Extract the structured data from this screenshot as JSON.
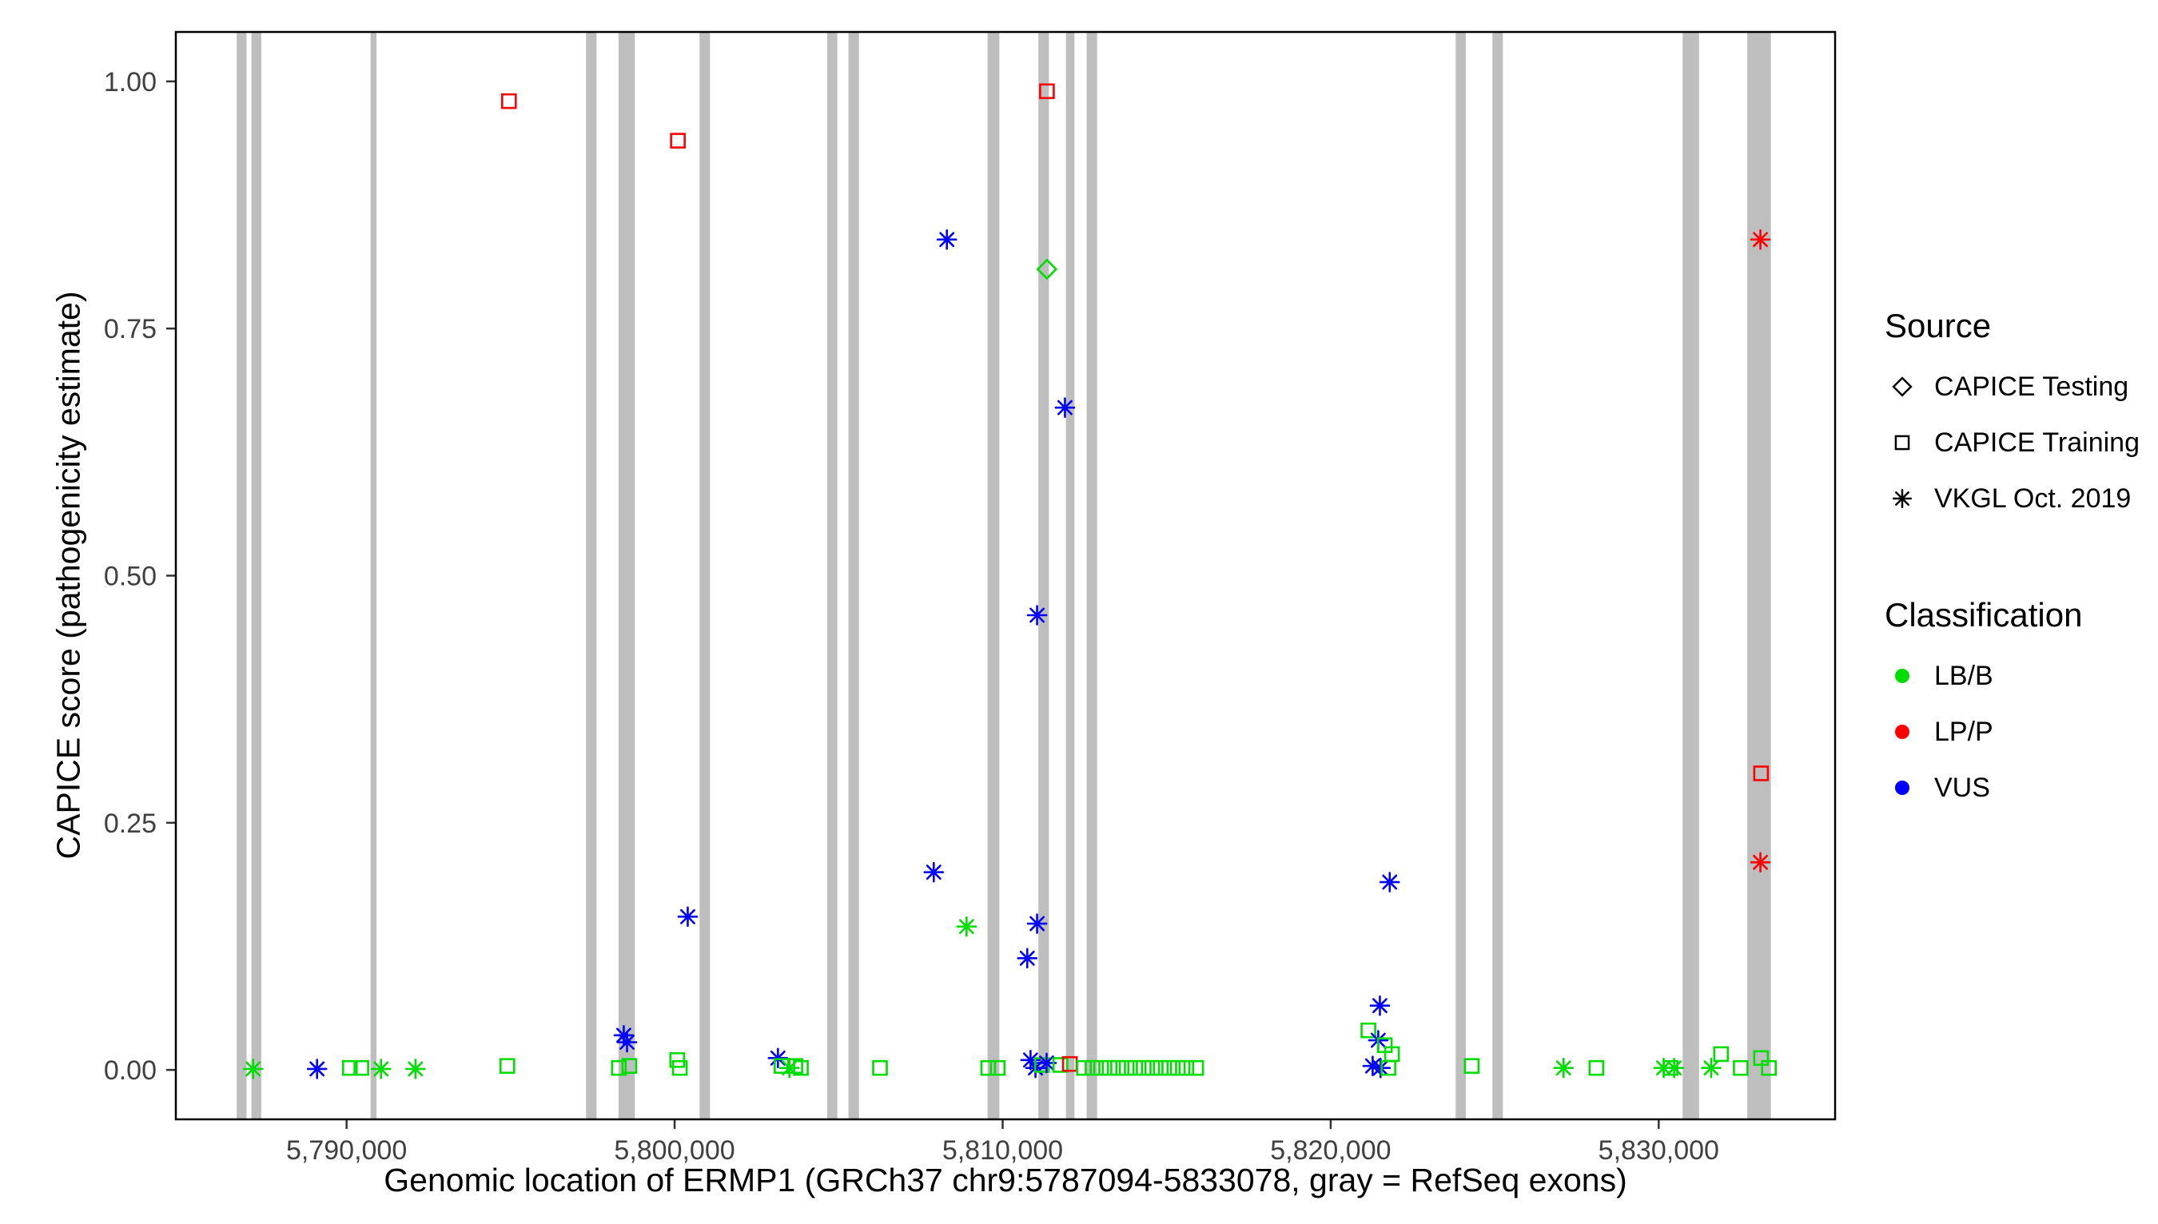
{
  "chart_data": {
    "type": "scatter",
    "title": "",
    "xlabel": "Genomic location of ERMP1 (GRCh37 chr9:5787094-5833078, gray = RefSeq exons)",
    "ylabel": "CAPICE score (pathogenicity estimate)",
    "x_domain": [
      5784795,
      5835377
    ],
    "y_domain": [
      -0.05,
      1.05
    ],
    "x_ticks": [
      {
        "value": 5790000,
        "label": "5,790,000"
      },
      {
        "value": 5800000,
        "label": "5,800,000"
      },
      {
        "value": 5810000,
        "label": "5,810,000"
      },
      {
        "value": 5820000,
        "label": "5,820,000"
      },
      {
        "value": 5830000,
        "label": "5,830,000"
      }
    ],
    "y_ticks": [
      {
        "value": 0.0,
        "label": "0.00"
      },
      {
        "value": 0.25,
        "label": "0.25"
      },
      {
        "value": 0.5,
        "label": "0.50"
      },
      {
        "value": 0.75,
        "label": "0.75"
      },
      {
        "value": 1.0,
        "label": "1.00"
      }
    ],
    "grid": false,
    "panel_border_color": "#000000",
    "exon_color": "#bebebe",
    "exons": [
      [
        5786650,
        5786950
      ],
      [
        5787100,
        5787400
      ],
      [
        5790730,
        5790910
      ],
      [
        5797300,
        5797620
      ],
      [
        5798290,
        5798790
      ],
      [
        5800760,
        5801080
      ],
      [
        5804650,
        5804960
      ],
      [
        5805300,
        5805620
      ],
      [
        5809540,
        5809900
      ],
      [
        5811090,
        5811410
      ],
      [
        5811930,
        5812190
      ],
      [
        5812560,
        5812880
      ],
      [
        5823810,
        5824120
      ],
      [
        5824930,
        5825250
      ],
      [
        5830730,
        5831230
      ],
      [
        5832700,
        5833420
      ]
    ],
    "markers": {
      "testing": "diamond",
      "training": "square",
      "vkgl": "asterisk"
    },
    "colors": {
      "LB/B": "#00dd00",
      "LP/P": "#ff0000",
      "VUS": "#0000ff"
    },
    "points": [
      {
        "x": 5794950,
        "y": 0.98,
        "source": "training",
        "cls": "LP/P"
      },
      {
        "x": 5800100,
        "y": 0.94,
        "source": "training",
        "cls": "LP/P"
      },
      {
        "x": 5811350,
        "y": 0.99,
        "source": "training",
        "cls": "LP/P"
      },
      {
        "x": 5811350,
        "y": 0.81,
        "source": "testing",
        "cls": "LB/B"
      },
      {
        "x": 5808300,
        "y": 0.84,
        "source": "vkgl",
        "cls": "VUS"
      },
      {
        "x": 5811900,
        "y": 0.67,
        "source": "vkgl",
        "cls": "VUS"
      },
      {
        "x": 5811050,
        "y": 0.46,
        "source": "vkgl",
        "cls": "VUS"
      },
      {
        "x": 5833100,
        "y": 0.84,
        "source": "vkgl",
        "cls": "LP/P"
      },
      {
        "x": 5833120,
        "y": 0.3,
        "source": "training",
        "cls": "LP/P"
      },
      {
        "x": 5833100,
        "y": 0.21,
        "source": "vkgl",
        "cls": "LP/P"
      },
      {
        "x": 5800400,
        "y": 0.155,
        "source": "vkgl",
        "cls": "VUS"
      },
      {
        "x": 5807900,
        "y": 0.2,
        "source": "vkgl",
        "cls": "VUS"
      },
      {
        "x": 5808900,
        "y": 0.145,
        "source": "vkgl",
        "cls": "LB/B"
      },
      {
        "x": 5811050,
        "y": 0.148,
        "source": "vkgl",
        "cls": "VUS"
      },
      {
        "x": 5810750,
        "y": 0.113,
        "source": "vkgl",
        "cls": "VUS"
      },
      {
        "x": 5821800,
        "y": 0.19,
        "source": "vkgl",
        "cls": "VUS"
      },
      {
        "x": 5821500,
        "y": 0.065,
        "source": "vkgl",
        "cls": "VUS"
      },
      {
        "x": 5821150,
        "y": 0.04,
        "source": "training",
        "cls": "LB/B"
      },
      {
        "x": 5821450,
        "y": 0.03,
        "source": "vkgl",
        "cls": "VUS"
      },
      {
        "x": 5821650,
        "y": 0.025,
        "source": "training",
        "cls": "LB/B"
      },
      {
        "x": 5798450,
        "y": 0.035,
        "source": "vkgl",
        "cls": "VUS"
      },
      {
        "x": 5798550,
        "y": 0.028,
        "source": "vkgl",
        "cls": "VUS"
      },
      {
        "x": 5787150,
        "y": 0.001,
        "source": "vkgl",
        "cls": "LB/B"
      },
      {
        "x": 5789100,
        "y": 0.001,
        "source": "vkgl",
        "cls": "VUS"
      },
      {
        "x": 5790100,
        "y": 0.002,
        "source": "training",
        "cls": "LB/B"
      },
      {
        "x": 5790450,
        "y": 0.002,
        "source": "training",
        "cls": "LB/B"
      },
      {
        "x": 5791050,
        "y": 0.001,
        "source": "vkgl",
        "cls": "LB/B"
      },
      {
        "x": 5792100,
        "y": 0.001,
        "source": "vkgl",
        "cls": "LB/B"
      },
      {
        "x": 5794900,
        "y": 0.004,
        "source": "training",
        "cls": "LB/B"
      },
      {
        "x": 5798300,
        "y": 0.002,
        "source": "training",
        "cls": "LB/B"
      },
      {
        "x": 5798620,
        "y": 0.004,
        "source": "training",
        "cls": "LB/B"
      },
      {
        "x": 5800080,
        "y": 0.01,
        "source": "training",
        "cls": "LB/B"
      },
      {
        "x": 5800160,
        "y": 0.002,
        "source": "training",
        "cls": "LB/B"
      },
      {
        "x": 5803150,
        "y": 0.012,
        "source": "vkgl",
        "cls": "VUS"
      },
      {
        "x": 5803260,
        "y": 0.004,
        "source": "training",
        "cls": "LB/B"
      },
      {
        "x": 5803500,
        "y": 0.002,
        "source": "vkgl",
        "cls": "LB/B"
      },
      {
        "x": 5803680,
        "y": 0.004,
        "source": "training",
        "cls": "LB/B"
      },
      {
        "x": 5803850,
        "y": 0.002,
        "source": "training",
        "cls": "LB/B"
      },
      {
        "x": 5806260,
        "y": 0.002,
        "source": "training",
        "cls": "LB/B"
      },
      {
        "x": 5809560,
        "y": 0.002,
        "source": "training",
        "cls": "LB/B"
      },
      {
        "x": 5809850,
        "y": 0.002,
        "source": "training",
        "cls": "LB/B"
      },
      {
        "x": 5810850,
        "y": 0.01,
        "source": "vkgl",
        "cls": "VUS"
      },
      {
        "x": 5811000,
        "y": 0.002,
        "source": "vkgl",
        "cls": "VUS"
      },
      {
        "x": 5811200,
        "y": 0.005,
        "source": "training",
        "cls": "LB/B"
      },
      {
        "x": 5811340,
        "y": 0.007,
        "source": "vkgl",
        "cls": "VUS"
      },
      {
        "x": 5811760,
        "y": 0.005,
        "source": "training",
        "cls": "LB/B"
      },
      {
        "x": 5812050,
        "y": 0.006,
        "source": "training",
        "cls": "LP/P"
      },
      {
        "x": 5812480,
        "y": 0.002,
        "source": "training",
        "cls": "LB/B"
      },
      {
        "x": 5812740,
        "y": 0.002,
        "source": "training",
        "cls": "LB/B"
      },
      {
        "x": 5813000,
        "y": 0.002,
        "source": "training",
        "cls": "LB/B"
      },
      {
        "x": 5813260,
        "y": 0.002,
        "source": "training",
        "cls": "LB/B"
      },
      {
        "x": 5813520,
        "y": 0.002,
        "source": "training",
        "cls": "LB/B"
      },
      {
        "x": 5813780,
        "y": 0.002,
        "source": "training",
        "cls": "LB/B"
      },
      {
        "x": 5814040,
        "y": 0.002,
        "source": "training",
        "cls": "LB/B"
      },
      {
        "x": 5814300,
        "y": 0.002,
        "source": "training",
        "cls": "LB/B"
      },
      {
        "x": 5814560,
        "y": 0.002,
        "source": "training",
        "cls": "LB/B"
      },
      {
        "x": 5814820,
        "y": 0.002,
        "source": "training",
        "cls": "LB/B"
      },
      {
        "x": 5815080,
        "y": 0.002,
        "source": "training",
        "cls": "LB/B"
      },
      {
        "x": 5815340,
        "y": 0.002,
        "source": "training",
        "cls": "LB/B"
      },
      {
        "x": 5815600,
        "y": 0.002,
        "source": "training",
        "cls": "LB/B"
      },
      {
        "x": 5815900,
        "y": 0.002,
        "source": "training",
        "cls": "LB/B"
      },
      {
        "x": 5821280,
        "y": 0.004,
        "source": "vkgl",
        "cls": "VUS"
      },
      {
        "x": 5821520,
        "y": 0.002,
        "source": "vkgl",
        "cls": "VUS"
      },
      {
        "x": 5821760,
        "y": 0.002,
        "source": "training",
        "cls": "LB/B"
      },
      {
        "x": 5821870,
        "y": 0.016,
        "source": "training",
        "cls": "LB/B"
      },
      {
        "x": 5824300,
        "y": 0.004,
        "source": "training",
        "cls": "LB/B"
      },
      {
        "x": 5827100,
        "y": 0.002,
        "source": "vkgl",
        "cls": "LB/B"
      },
      {
        "x": 5828100,
        "y": 0.002,
        "source": "training",
        "cls": "LB/B"
      },
      {
        "x": 5830150,
        "y": 0.002,
        "source": "vkgl",
        "cls": "LB/B"
      },
      {
        "x": 5830360,
        "y": 0.002,
        "source": "training",
        "cls": "LB/B"
      },
      {
        "x": 5830470,
        "y": 0.002,
        "source": "vkgl",
        "cls": "LB/B"
      },
      {
        "x": 5831600,
        "y": 0.002,
        "source": "vkgl",
        "cls": "LB/B"
      },
      {
        "x": 5831900,
        "y": 0.016,
        "source": "training",
        "cls": "LB/B"
      },
      {
        "x": 5832500,
        "y": 0.002,
        "source": "training",
        "cls": "LB/B"
      },
      {
        "x": 5833120,
        "y": 0.012,
        "source": "training",
        "cls": "LB/B"
      },
      {
        "x": 5833360,
        "y": 0.002,
        "source": "training",
        "cls": "LB/B"
      }
    ],
    "legend": {
      "source_title": "Source",
      "source_items": [
        {
          "label": "CAPICE Testing",
          "marker": "diamond"
        },
        {
          "label": "CAPICE Training",
          "marker": "square"
        },
        {
          "label": "VKGL Oct. 2019",
          "marker": "asterisk"
        }
      ],
      "classification_title": "Classification",
      "classification_items": [
        {
          "label": "LB/B",
          "color": "#00dd00"
        },
        {
          "label": "LP/P",
          "color": "#ff0000"
        },
        {
          "label": "VUS",
          "color": "#0000ff"
        }
      ]
    }
  }
}
